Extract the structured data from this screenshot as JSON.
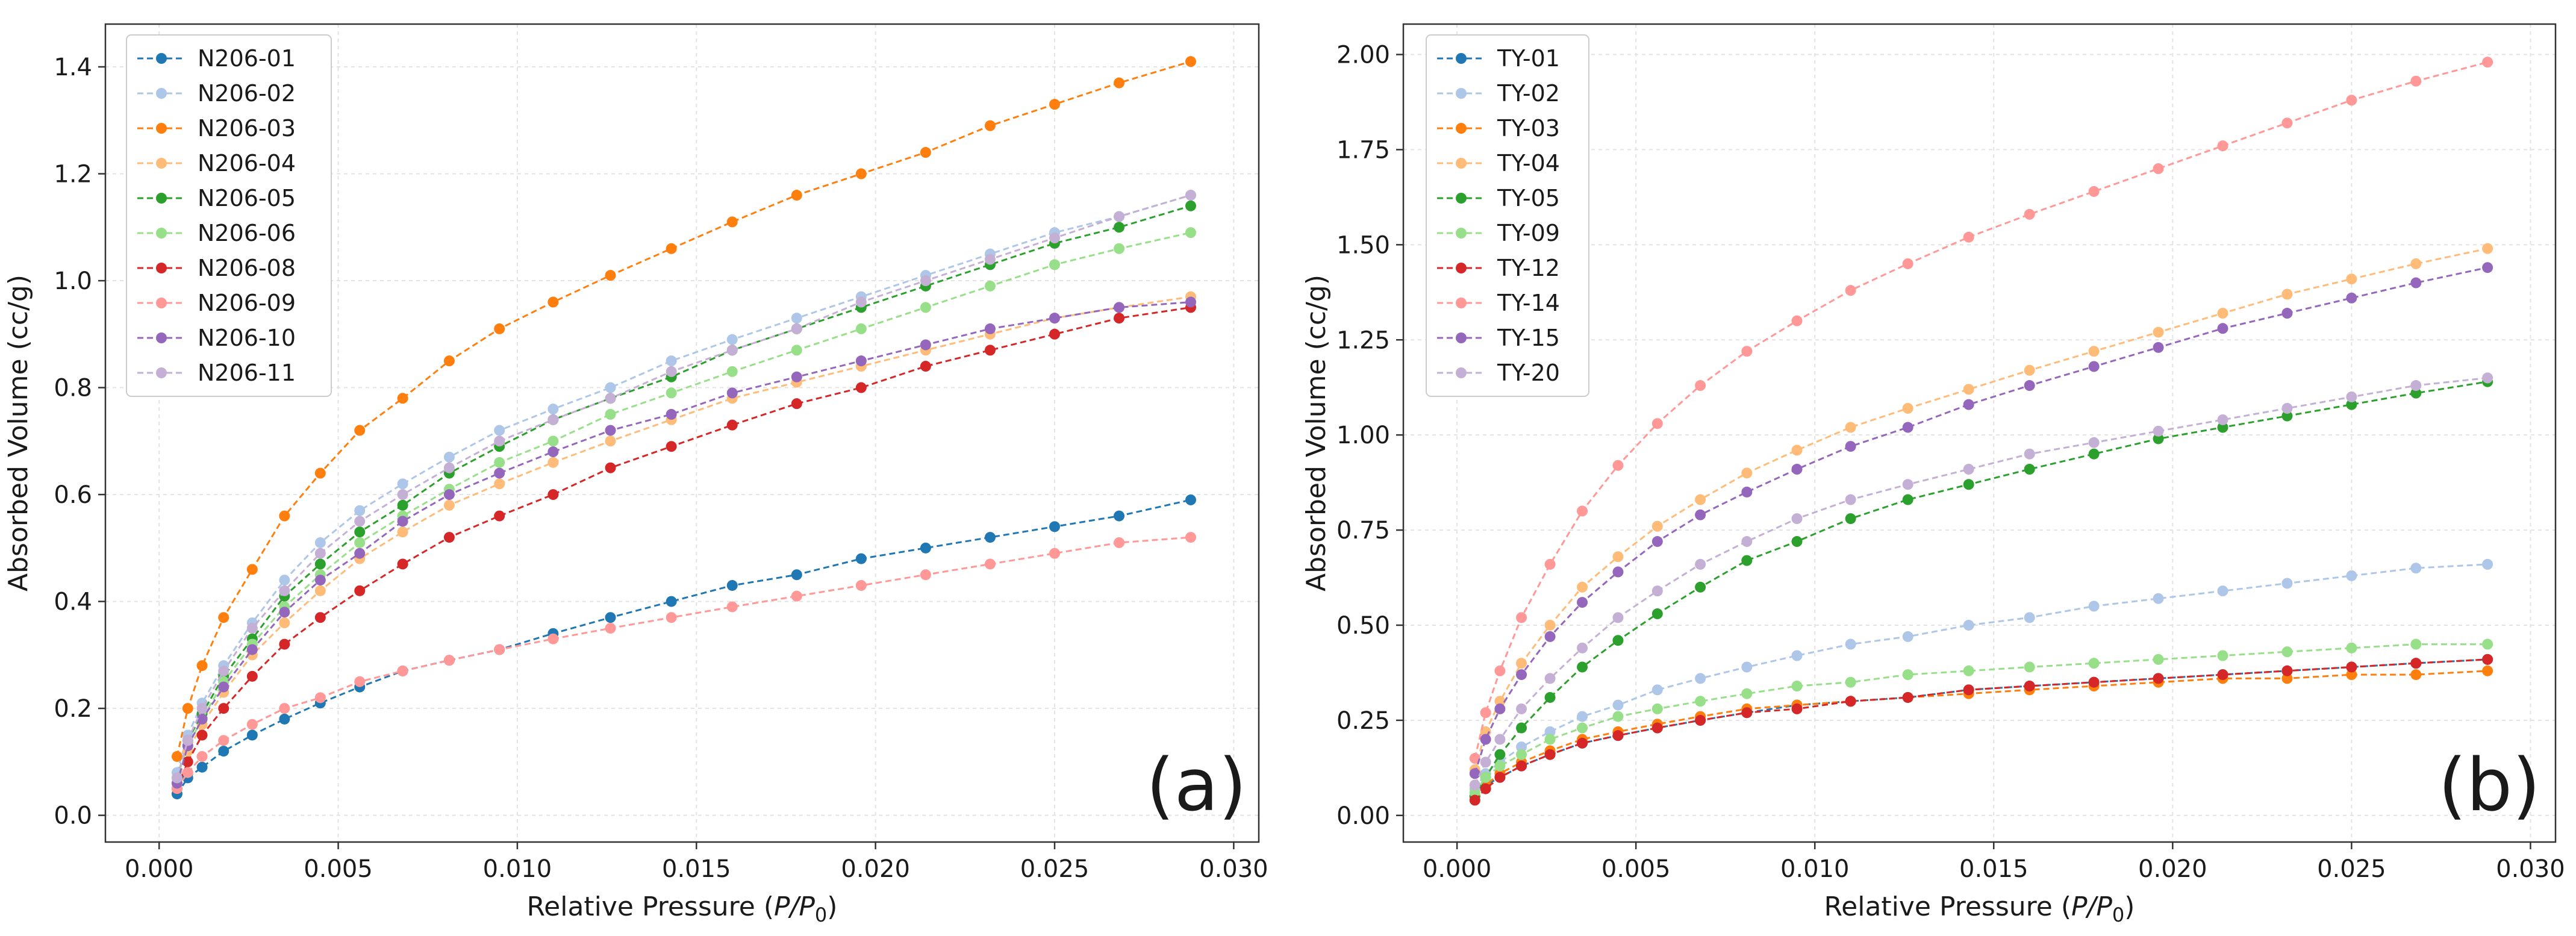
{
  "palette": {
    "c01": "#1f77b4",
    "c02": "#aec7e8",
    "c03": "#ff7f0e",
    "c04": "#ffbb78",
    "c05": "#2ca02c",
    "c06": "#98df8a",
    "c08": "#d62728",
    "c09": "#ff9896",
    "c10": "#9467bd",
    "c11": "#c5b0d5"
  },
  "chart_data": [
    {
      "type": "line",
      "panel_label": "(a)",
      "xlabel": "Relative Pressure (P/P0)",
      "xlabel_prefix": "Relative Pressure (",
      "xlabel_italic": "P/P",
      "xlabel_sub": "0",
      "xlabel_suffix": ")",
      "ylabel": "Absorbed Volume (cc/g)",
      "xlim": [
        -0.0015,
        0.0307
      ],
      "ylim": [
        -0.05,
        1.48
      ],
      "xticks": [
        0.0,
        0.005,
        0.01,
        0.015,
        0.02,
        0.025,
        0.03
      ],
      "xtick_labels": [
        "0.000",
        "0.005",
        "0.010",
        "0.015",
        "0.020",
        "0.025",
        "0.030"
      ],
      "yticks": [
        0.0,
        0.2,
        0.4,
        0.6,
        0.8,
        1.0,
        1.2,
        1.4
      ],
      "ytick_labels": [
        "0.0",
        "0.2",
        "0.4",
        "0.6",
        "0.8",
        "1.0",
        "1.2",
        "1.4"
      ],
      "grid": true,
      "legend_position": "upper-left",
      "x": [
        0.0005,
        0.0008,
        0.0012,
        0.0018,
        0.0026,
        0.0035,
        0.0045,
        0.0056,
        0.0068,
        0.0081,
        0.0095,
        0.011,
        0.0126,
        0.0143,
        0.016,
        0.0178,
        0.0196,
        0.0214,
        0.0232,
        0.025,
        0.0268,
        0.0288
      ],
      "series": [
        {
          "name": "N206-01",
          "color_key": "c01",
          "values": [
            0.04,
            0.07,
            0.09,
            0.12,
            0.15,
            0.18,
            0.21,
            0.24,
            0.27,
            0.29,
            0.31,
            0.34,
            0.37,
            0.4,
            0.43,
            0.45,
            0.48,
            0.5,
            0.52,
            0.54,
            0.56,
            0.59
          ]
        },
        {
          "name": "N206-02",
          "color_key": "c02",
          "values": [
            0.08,
            0.15,
            0.21,
            0.28,
            0.36,
            0.44,
            0.51,
            0.57,
            0.62,
            0.67,
            0.72,
            0.76,
            0.8,
            0.85,
            0.89,
            0.93,
            0.97,
            1.01,
            1.05,
            1.09,
            1.12,
            1.16
          ]
        },
        {
          "name": "N206-03",
          "color_key": "c03",
          "values": [
            0.11,
            0.2,
            0.28,
            0.37,
            0.46,
            0.56,
            0.64,
            0.72,
            0.78,
            0.85,
            0.91,
            0.96,
            1.01,
            1.06,
            1.11,
            1.16,
            1.2,
            1.24,
            1.29,
            1.33,
            1.37,
            1.41
          ]
        },
        {
          "name": "N206-04",
          "color_key": "c04",
          "values": [
            0.06,
            0.12,
            0.17,
            0.23,
            0.3,
            0.36,
            0.42,
            0.48,
            0.53,
            0.58,
            0.62,
            0.66,
            0.7,
            0.74,
            0.78,
            0.81,
            0.84,
            0.87,
            0.9,
            0.93,
            0.95,
            0.97
          ]
        },
        {
          "name": "N206-05",
          "color_key": "c05",
          "values": [
            0.07,
            0.14,
            0.19,
            0.26,
            0.33,
            0.41,
            0.47,
            0.53,
            0.58,
            0.64,
            0.69,
            0.74,
            0.78,
            0.82,
            0.87,
            0.91,
            0.95,
            0.99,
            1.03,
            1.07,
            1.1,
            1.14
          ]
        },
        {
          "name": "N206-06",
          "color_key": "c06",
          "values": [
            0.07,
            0.13,
            0.18,
            0.25,
            0.32,
            0.39,
            0.45,
            0.51,
            0.56,
            0.61,
            0.66,
            0.7,
            0.75,
            0.79,
            0.83,
            0.87,
            0.91,
            0.95,
            0.99,
            1.03,
            1.06,
            1.09
          ]
        },
        {
          "name": "N206-08",
          "color_key": "c08",
          "values": [
            0.05,
            0.1,
            0.15,
            0.2,
            0.26,
            0.32,
            0.37,
            0.42,
            0.47,
            0.52,
            0.56,
            0.6,
            0.65,
            0.69,
            0.73,
            0.77,
            0.8,
            0.84,
            0.87,
            0.9,
            0.93,
            0.95
          ]
        },
        {
          "name": "N206-09",
          "color_key": "c09",
          "values": [
            0.05,
            0.08,
            0.11,
            0.14,
            0.17,
            0.2,
            0.22,
            0.25,
            0.27,
            0.29,
            0.31,
            0.33,
            0.35,
            0.37,
            0.39,
            0.41,
            0.43,
            0.45,
            0.47,
            0.49,
            0.51,
            0.52
          ]
        },
        {
          "name": "N206-10",
          "color_key": "c10",
          "values": [
            0.06,
            0.13,
            0.18,
            0.24,
            0.31,
            0.38,
            0.44,
            0.49,
            0.55,
            0.6,
            0.64,
            0.68,
            0.72,
            0.75,
            0.79,
            0.82,
            0.85,
            0.88,
            0.91,
            0.93,
            0.95,
            0.96
          ]
        },
        {
          "name": "N206-11",
          "color_key": "c11",
          "values": [
            0.07,
            0.14,
            0.2,
            0.27,
            0.35,
            0.42,
            0.49,
            0.55,
            0.6,
            0.65,
            0.7,
            0.74,
            0.78,
            0.83,
            0.87,
            0.91,
            0.96,
            1.0,
            1.04,
            1.08,
            1.12,
            1.16
          ]
        }
      ]
    },
    {
      "type": "line",
      "panel_label": "(b)",
      "xlabel": "Relative Pressure (P/P0)",
      "xlabel_prefix": "Relative Pressure (",
      "xlabel_italic": "P/P",
      "xlabel_sub": "0",
      "xlabel_suffix": ")",
      "ylabel": "Absorbed Volume (cc/g)",
      "xlim": [
        -0.0015,
        0.0307
      ],
      "ylim": [
        -0.07,
        2.08
      ],
      "xticks": [
        0.0,
        0.005,
        0.01,
        0.015,
        0.02,
        0.025,
        0.03
      ],
      "xtick_labels": [
        "0.000",
        "0.005",
        "0.010",
        "0.015",
        "0.020",
        "0.025",
        "0.030"
      ],
      "yticks": [
        0.0,
        0.25,
        0.5,
        0.75,
        1.0,
        1.25,
        1.5,
        1.75,
        2.0
      ],
      "ytick_labels": [
        "0.00",
        "0.25",
        "0.50",
        "0.75",
        "1.00",
        "1.25",
        "1.50",
        "1.75",
        "2.00"
      ],
      "grid": true,
      "legend_position": "upper-left",
      "x": [
        0.0005,
        0.0008,
        0.0012,
        0.0018,
        0.0026,
        0.0035,
        0.0045,
        0.0056,
        0.0068,
        0.0081,
        0.0095,
        0.011,
        0.0126,
        0.0143,
        0.016,
        0.0178,
        0.0196,
        0.0214,
        0.0232,
        0.025,
        0.0268,
        0.0288
      ],
      "series": [
        {
          "name": "TY-01",
          "color_key": "c01",
          "values": [
            0.05,
            0.08,
            0.1,
            0.13,
            0.16,
            0.19,
            0.21,
            0.23,
            0.25,
            0.27,
            0.29,
            0.3,
            0.31,
            0.33,
            0.34,
            0.35,
            0.36,
            0.37,
            0.38,
            0.39,
            0.4,
            0.41
          ]
        },
        {
          "name": "TY-02",
          "color_key": "c02",
          "values": [
            0.07,
            0.11,
            0.14,
            0.18,
            0.22,
            0.26,
            0.29,
            0.33,
            0.36,
            0.39,
            0.42,
            0.45,
            0.47,
            0.5,
            0.52,
            0.55,
            0.57,
            0.59,
            0.61,
            0.63,
            0.65,
            0.66
          ]
        },
        {
          "name": "TY-03",
          "color_key": "c03",
          "values": [
            0.05,
            0.08,
            0.11,
            0.14,
            0.17,
            0.2,
            0.22,
            0.24,
            0.26,
            0.28,
            0.29,
            0.3,
            0.31,
            0.32,
            0.33,
            0.34,
            0.35,
            0.36,
            0.36,
            0.37,
            0.37,
            0.38
          ]
        },
        {
          "name": "TY-04",
          "color_key": "c04",
          "values": [
            0.12,
            0.22,
            0.3,
            0.4,
            0.5,
            0.6,
            0.68,
            0.76,
            0.83,
            0.9,
            0.96,
            1.02,
            1.07,
            1.12,
            1.17,
            1.22,
            1.27,
            1.32,
            1.37,
            1.41,
            1.45,
            1.49
          ]
        },
        {
          "name": "TY-05",
          "color_key": "c05",
          "values": [
            0.05,
            0.1,
            0.16,
            0.23,
            0.31,
            0.39,
            0.46,
            0.53,
            0.6,
            0.67,
            0.72,
            0.78,
            0.83,
            0.87,
            0.91,
            0.95,
            0.99,
            1.02,
            1.05,
            1.08,
            1.11,
            1.14
          ]
        },
        {
          "name": "TY-09",
          "color_key": "c06",
          "values": [
            0.06,
            0.1,
            0.13,
            0.16,
            0.2,
            0.23,
            0.26,
            0.28,
            0.3,
            0.32,
            0.34,
            0.35,
            0.37,
            0.38,
            0.39,
            0.4,
            0.41,
            0.42,
            0.43,
            0.44,
            0.45,
            0.45
          ]
        },
        {
          "name": "TY-12",
          "color_key": "c08",
          "values": [
            0.04,
            0.07,
            0.1,
            0.13,
            0.16,
            0.19,
            0.21,
            0.23,
            0.25,
            0.27,
            0.28,
            0.3,
            0.31,
            0.33,
            0.34,
            0.35,
            0.36,
            0.37,
            0.38,
            0.39,
            0.4,
            0.41
          ]
        },
        {
          "name": "TY-14",
          "color_key": "c09",
          "values": [
            0.15,
            0.27,
            0.38,
            0.52,
            0.66,
            0.8,
            0.92,
            1.03,
            1.13,
            1.22,
            1.3,
            1.38,
            1.45,
            1.52,
            1.58,
            1.64,
            1.7,
            1.76,
            1.82,
            1.88,
            1.93,
            1.98
          ]
        },
        {
          "name": "TY-15",
          "color_key": "c10",
          "values": [
            0.11,
            0.2,
            0.28,
            0.37,
            0.47,
            0.56,
            0.64,
            0.72,
            0.79,
            0.85,
            0.91,
            0.97,
            1.02,
            1.08,
            1.13,
            1.18,
            1.23,
            1.28,
            1.32,
            1.36,
            1.4,
            1.44
          ]
        },
        {
          "name": "TY-20",
          "color_key": "c11",
          "values": [
            0.08,
            0.14,
            0.2,
            0.28,
            0.36,
            0.44,
            0.52,
            0.59,
            0.66,
            0.72,
            0.78,
            0.83,
            0.87,
            0.91,
            0.95,
            0.98,
            1.01,
            1.04,
            1.07,
            1.1,
            1.13,
            1.15
          ]
        }
      ]
    }
  ]
}
